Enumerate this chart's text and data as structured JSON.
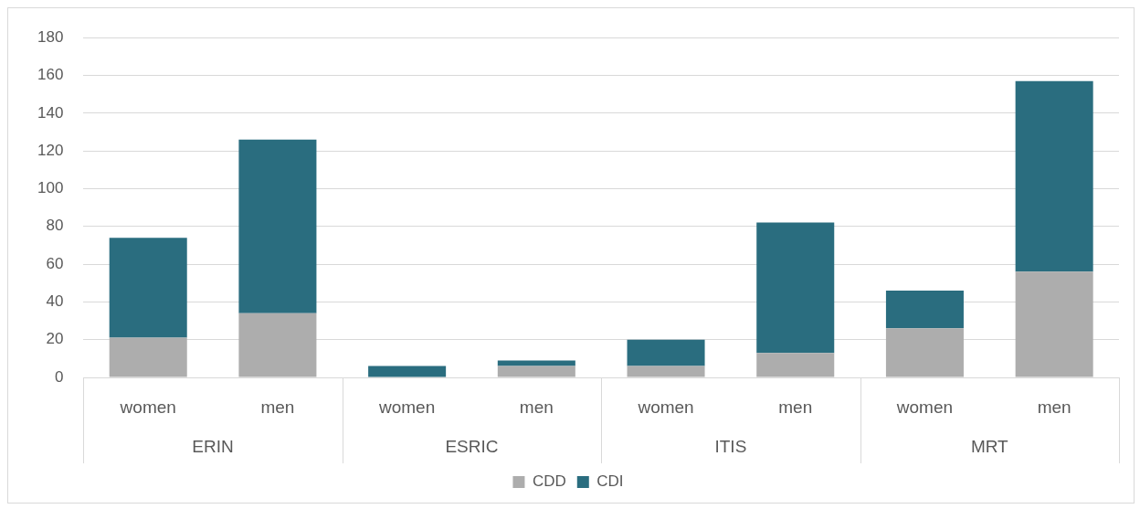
{
  "chart_data": {
    "type": "bar",
    "stacked": true,
    "categories": [
      "women",
      "men",
      "women",
      "men",
      "women",
      "men",
      "women",
      "men"
    ],
    "series": [
      {
        "name": "CDD",
        "color": "#adadad",
        "values": [
          21,
          34,
          0,
          6,
          6,
          13,
          26,
          56
        ]
      },
      {
        "name": "CDI",
        "color": "#2a6d7f",
        "values": [
          53,
          92,
          6,
          3,
          14,
          69,
          20,
          101
        ]
      }
    ],
    "annotations": [
      "ERIN",
      "ESRIC",
      "ITIS",
      "MRT"
    ],
    "ylim": [
      0,
      180
    ],
    "yticks": [
      0,
      20,
      40,
      60,
      80,
      100,
      120,
      140,
      160,
      180
    ],
    "grid": "y",
    "legend": "bottom"
  }
}
